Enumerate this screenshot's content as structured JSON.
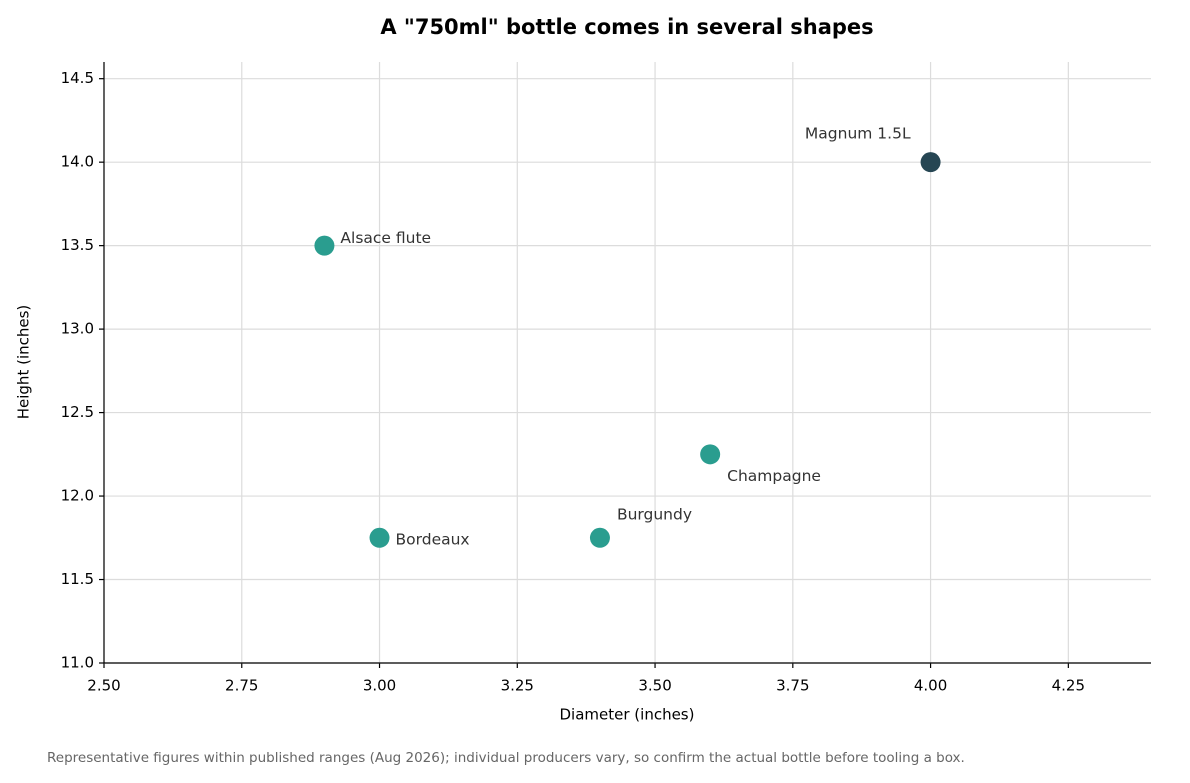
{
  "chart_data": {
    "type": "scatter",
    "title": "A \"750ml\" bottle comes in several shapes",
    "x_label": "Diameter (inches)",
    "y_label": "Height (inches)",
    "labels": [
      "Alsace flute",
      "Bordeaux",
      "Burgundy",
      "Champagne",
      "Magnum 1.5L"
    ],
    "x": [
      2.9,
      3.0,
      3.4,
      3.6,
      4.0
    ],
    "values": [
      13.5,
      11.75,
      11.75,
      12.25,
      14.0
    ],
    "colors": [
      "#2a9d8f",
      "#2a9d8f",
      "#2a9d8f",
      "#2a9d8f",
      "#264653"
    ],
    "xlim": [
      2.5,
      4.4
    ],
    "xticks": [
      {
        "value": 2.5,
        "label": "2.50"
      },
      2.75,
      {
        "value": 3.0,
        "label": "3.00"
      },
      3.25,
      {
        "value": 3.5,
        "label": "3.50"
      },
      3.75,
      {
        "value": 4.0,
        "label": "4.00"
      },
      4.25
    ],
    "ylim": [
      11,
      14.6
    ],
    "yticks": [
      {
        "value": 11,
        "label": "11.0"
      },
      11.5,
      {
        "value": 12,
        "label": "12.0"
      },
      12.5,
      {
        "value": 13,
        "label": "13.0"
      },
      13.5,
      {
        "value": 14,
        "label": "14.0"
      },
      14.5
    ],
    "grid": true,
    "footnote": "Representative figures within published ranges (Aug 2026); individual producers vary, so confirm the actual bottle before tooling a box."
  }
}
